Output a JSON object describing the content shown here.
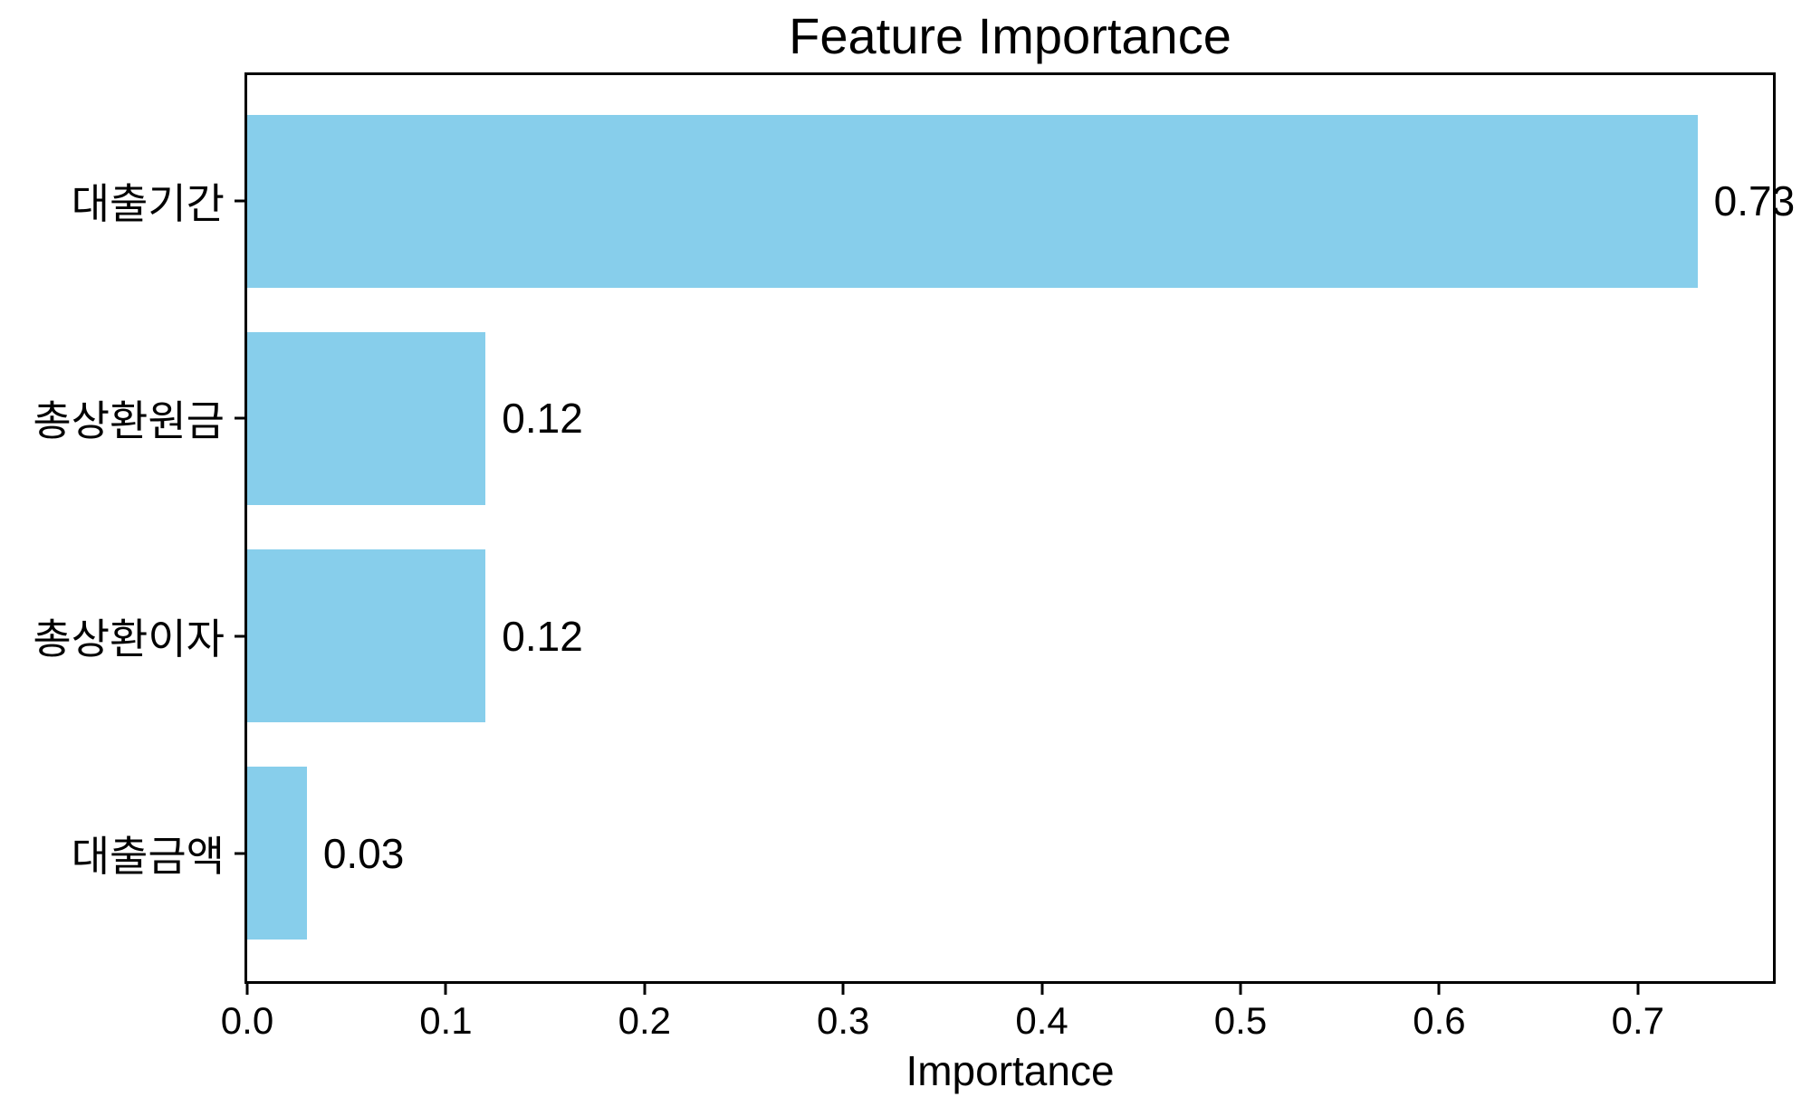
{
  "figure": {
    "background_color": "#ffffff",
    "text_color": "#000000",
    "axis_color": "#000000",
    "bar_color": "#87CEEB"
  },
  "chart_data": {
    "type": "bar",
    "orientation": "horizontal",
    "title": "Feature Importance",
    "xlabel": "Importance",
    "ylabel": "",
    "categories": [
      "대출기간",
      "총상환원금",
      "총상환이자",
      "대출금액"
    ],
    "values": [
      0.73,
      0.12,
      0.12,
      0.03
    ],
    "value_labels": [
      "0.73",
      "0.12",
      "0.12",
      "0.03"
    ],
    "xlim": [
      0,
      0.768
    ],
    "xticks": [
      0.0,
      0.1,
      0.2,
      0.3,
      0.4,
      0.5,
      0.6,
      0.7
    ],
    "xtick_labels": [
      "0.0",
      "0.1",
      "0.2",
      "0.3",
      "0.4",
      "0.5",
      "0.6",
      "0.7"
    ],
    "grid": false,
    "legend": null
  }
}
